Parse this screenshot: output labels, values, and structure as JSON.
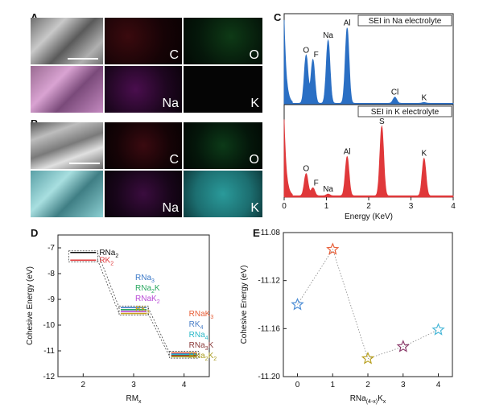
{
  "panels": {
    "A": {
      "letter": "A",
      "tiles": {
        "sem": "",
        "c": "C",
        "o": "O",
        "overlay": "",
        "na": "Na",
        "k": "K"
      }
    },
    "B": {
      "letter": "B",
      "tiles": {
        "sem": "",
        "c": "C",
        "o": "O",
        "overlay": "",
        "na": "Na",
        "k": "K"
      }
    },
    "C": {
      "letter": "C"
    },
    "D": {
      "letter": "D"
    },
    "E": {
      "letter": "E"
    }
  },
  "colors": {
    "na_spectrum": "#2a6fc4",
    "k_spectrum": "#e0383a",
    "c_map": "#c0202a",
    "o_map": "#2ec254",
    "na_map": "#c030c8",
    "k_map_na": "#111111",
    "k_map_k": "#35c8c8",
    "star_rna4": "#4f8fd6",
    "star_rna3k": "#e8603a",
    "star_rna2k2": "#b8a020",
    "star_rnak3": "#8a3a6a",
    "star_rk4": "#4ab8d8"
  },
  "chart_data": [
    {
      "type": "area",
      "panel": "C-top",
      "title": "SEI in Na electrolyte",
      "xlabel": "Energy (KeV)",
      "xlim": [
        0,
        4
      ],
      "ylabel": "",
      "peaks": [
        {
          "element": "O",
          "energy": 0.52,
          "height": 0.55
        },
        {
          "element": "F",
          "energy": 0.68,
          "height": 0.5
        },
        {
          "element": "Na",
          "energy": 1.04,
          "height": 0.72
        },
        {
          "element": "Al",
          "energy": 1.49,
          "height": 0.86
        },
        {
          "element": "Cl",
          "energy": 2.62,
          "height": 0.07
        },
        {
          "element": "K",
          "energy": 3.31,
          "height": 0.01
        }
      ]
    },
    {
      "type": "area",
      "panel": "C-bottom",
      "title": "SEI in K electrolyte",
      "xlabel": "Energy (KeV)",
      "xlim": [
        0,
        4
      ],
      "xticks": [
        "0",
        "1",
        "2",
        "3",
        "4"
      ],
      "peaks": [
        {
          "element": "O",
          "energy": 0.52,
          "height": 0.25
        },
        {
          "element": "F",
          "energy": 0.68,
          "height": 0.09
        },
        {
          "element": "Na",
          "energy": 1.04,
          "height": 0.02
        },
        {
          "element": "Al",
          "energy": 1.49,
          "height": 0.44
        },
        {
          "element": "S",
          "energy": 2.31,
          "height": 0.78
        },
        {
          "element": "K",
          "energy": 3.31,
          "height": 0.42
        }
      ]
    },
    {
      "type": "scatter",
      "panel": "D",
      "xlabel": "RMx",
      "ylabel": "Cohesive Energy (eV)",
      "xlim": [
        1.5,
        4.5
      ],
      "ylim": [
        -12,
        -6.5
      ],
      "xticks": [
        2,
        3,
        4
      ],
      "yticks": [
        -7,
        -8,
        -9,
        -10,
        -11,
        -12
      ],
      "levels": [
        {
          "x": 2,
          "labels": [
            {
              "text": "RNa",
              "sub": "2",
              "color": "#111111"
            },
            {
              "text": "RK",
              "sub": "2",
              "color": "#e0383a"
            }
          ],
          "values": [
            -7.18,
            -7.48
          ]
        },
        {
          "x": 3,
          "labels": [
            {
              "text": "RNa",
              "sub": "3",
              "color": "#3a78c8"
            },
            {
              "text": "RNa",
              "sub": "2",
              "tail": "K",
              "color": "#2aa860"
            },
            {
              "text": "RNaK",
              "sub": "2",
              "color": "#b84ad6"
            },
            {
              "text": "RK",
              "sub": "3",
              "color": "#c8a21c"
            }
          ],
          "values": [
            -9.32,
            -9.4,
            -9.47,
            -9.55
          ]
        },
        {
          "x": 4,
          "labels": [
            {
              "text": "RNaK",
              "sub": "3",
              "color": "#e8603a"
            },
            {
              "text": "RK",
              "sub": "4",
              "color": "#4a7fc8"
            },
            {
              "text": "RNa",
              "sub": "4",
              "color": "#2ab8c8"
            },
            {
              "text": "RNa",
              "sub": "3",
              "tail": "K",
              "color": "#8a3a3a"
            },
            {
              "text": "RNa",
              "sub": "2",
              "tail": "K",
              "sub2": "2",
              "color": "#a89a1c"
            }
          ],
          "values": [
            -11.08,
            -11.12,
            -11.15,
            -11.18,
            -11.22
          ]
        }
      ]
    },
    {
      "type": "scatter",
      "panel": "E",
      "xlabel": "RNa(4-x)Kx",
      "ylabel": "Cohesive Energy (eV)",
      "xlim": [
        -0.4,
        4.4
      ],
      "ylim": [
        -11.2,
        -11.08
      ],
      "xticks": [
        0,
        1,
        2,
        3,
        4
      ],
      "yticks": [
        "-11.08",
        "-11.12",
        "-11.16",
        "-11.20"
      ],
      "x": [
        0,
        1,
        2,
        3,
        4
      ],
      "y": [
        -11.14,
        -11.094,
        -11.185,
        -11.175,
        -11.161
      ]
    }
  ]
}
